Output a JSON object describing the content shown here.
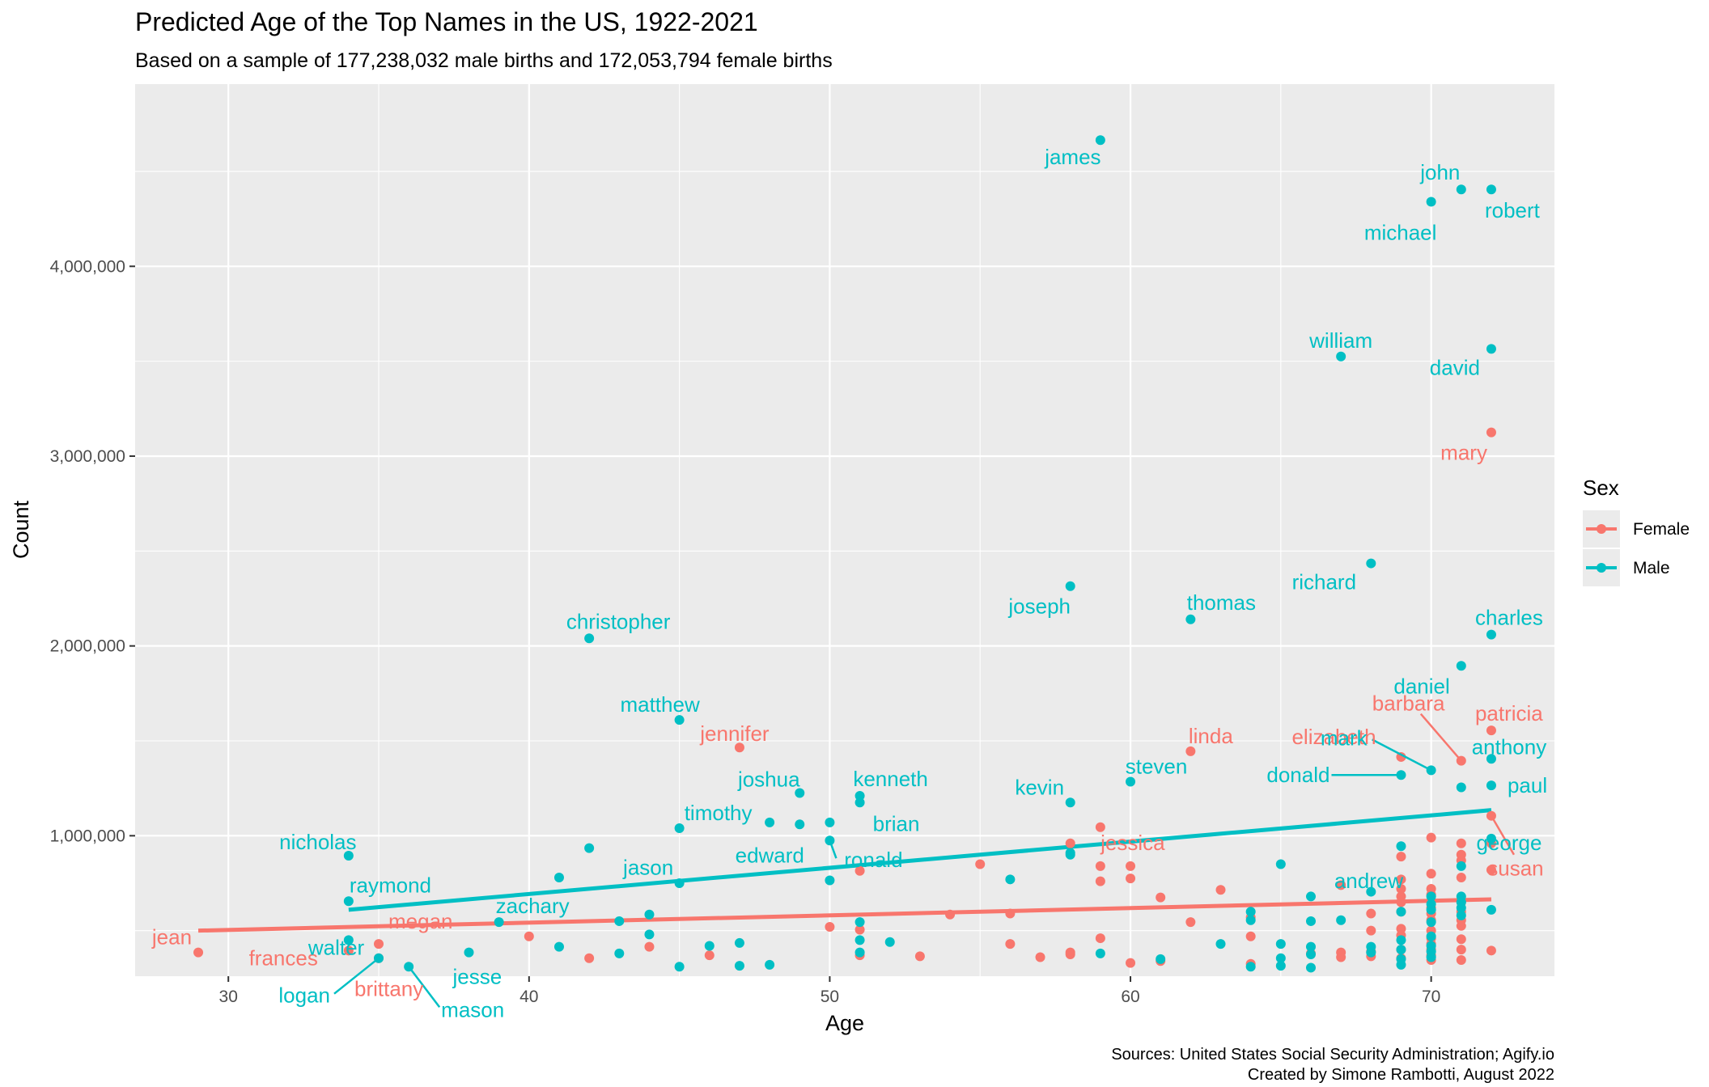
{
  "chart_data": {
    "type": "scatter",
    "title": "Predicted Age of the Top Names in the US, 1922-2021",
    "subtitle": "Based on a sample of 177,238,032 male births and 172,053,794 female births",
    "xlabel": "Age",
    "ylabel": "Count",
    "xlim": [
      26.9,
      74.1
    ],
    "ylim": [
      260000,
      4960000
    ],
    "x_ticks": [
      30,
      40,
      50,
      60,
      70
    ],
    "x_tick_labels": [
      "30",
      "40",
      "50",
      "60",
      "70"
    ],
    "y_ticks": [
      1000000,
      2000000,
      3000000,
      4000000
    ],
    "y_tick_labels": [
      "1,000,000",
      "2,000,000",
      "3,000,000",
      "4,000,000"
    ],
    "grid": true,
    "legend": {
      "title": "Sex",
      "position": "right"
    },
    "colors": {
      "Female": "#F8766D",
      "Male": "#00BFC4"
    },
    "caption": [
      "Sources: United States Social Security Administration; Agify.io",
      "Created by Simone Rambotti, August 2022"
    ],
    "series": [
      {
        "name": "Female",
        "trend": [
          [
            29,
            500000
          ],
          [
            72,
            665000
          ]
        ],
        "labels": [
          {
            "text": "mary",
            "x": 72,
            "y": 3125000
          },
          {
            "text": "patricia",
            "x": 72,
            "y": 1555000
          },
          {
            "text": "barbara",
            "x": 71,
            "y": 1395000
          },
          {
            "text": "elizabeth",
            "x": 69,
            "y": 1415000
          },
          {
            "text": "linda",
            "x": 62,
            "y": 1445000
          },
          {
            "text": "jennifer",
            "x": 47,
            "y": 1465000
          },
          {
            "text": "jessica",
            "x": 59,
            "y": 1045000
          },
          {
            "text": "susan",
            "x": 72,
            "y": 1105000
          },
          {
            "text": "jean",
            "x": 29,
            "y": 385000
          },
          {
            "text": "frances",
            "x": 34,
            "y": 395000
          },
          {
            "text": "megan",
            "x": 35,
            "y": 430000
          },
          {
            "text": "brittany",
            "x": 35,
            "y": 355000
          }
        ],
        "points": [
          [
            29,
            385000
          ],
          [
            34,
            395000
          ],
          [
            35,
            430000
          ],
          [
            35,
            355000
          ],
          [
            40,
            470000
          ],
          [
            42,
            355000
          ],
          [
            44,
            415000
          ],
          [
            46,
            370000
          ],
          [
            47,
            1465000
          ],
          [
            50,
            520000
          ],
          [
            51,
            505000
          ],
          [
            51,
            370000
          ],
          [
            51,
            815000
          ],
          [
            53,
            365000
          ],
          [
            54,
            585000
          ],
          [
            55,
            850000
          ],
          [
            56,
            430000
          ],
          [
            56,
            590000
          ],
          [
            57,
            360000
          ],
          [
            58,
            375000
          ],
          [
            58,
            385000
          ],
          [
            58,
            960000
          ],
          [
            59,
            1045000
          ],
          [
            59,
            840000
          ],
          [
            59,
            760000
          ],
          [
            59,
            460000
          ],
          [
            60,
            840000
          ],
          [
            60,
            775000
          ],
          [
            60,
            330000
          ],
          [
            61,
            675000
          ],
          [
            61,
            340000
          ],
          [
            62,
            1445000
          ],
          [
            62,
            545000
          ],
          [
            63,
            715000
          ],
          [
            64,
            470000
          ],
          [
            64,
            570000
          ],
          [
            64,
            325000
          ],
          [
            66,
            380000
          ],
          [
            67,
            740000
          ],
          [
            67,
            385000
          ],
          [
            67,
            360000
          ],
          [
            68,
            590000
          ],
          [
            68,
            500000
          ],
          [
            68,
            390000
          ],
          [
            68,
            365000
          ],
          [
            69,
            1415000
          ],
          [
            69,
            890000
          ],
          [
            69,
            770000
          ],
          [
            69,
            720000
          ],
          [
            69,
            680000
          ],
          [
            69,
            650000
          ],
          [
            69,
            600000
          ],
          [
            69,
            510000
          ],
          [
            69,
            475000
          ],
          [
            69,
            400000
          ],
          [
            69,
            355000
          ],
          [
            70,
            990000
          ],
          [
            70,
            800000
          ],
          [
            70,
            720000
          ],
          [
            70,
            690000
          ],
          [
            70,
            655000
          ],
          [
            70,
            620000
          ],
          [
            70,
            590000
          ],
          [
            70,
            555000
          ],
          [
            70,
            500000
          ],
          [
            70,
            460000
          ],
          [
            70,
            430000
          ],
          [
            70,
            400000
          ],
          [
            70,
            370000
          ],
          [
            70,
            345000
          ],
          [
            71,
            1395000
          ],
          [
            71,
            960000
          ],
          [
            71,
            900000
          ],
          [
            71,
            870000
          ],
          [
            71,
            780000
          ],
          [
            71,
            650000
          ],
          [
            71,
            600000
          ],
          [
            71,
            555000
          ],
          [
            71,
            525000
          ],
          [
            71,
            455000
          ],
          [
            71,
            400000
          ],
          [
            71,
            345000
          ],
          [
            72,
            3125000
          ],
          [
            72,
            1555000
          ],
          [
            72,
            1105000
          ],
          [
            72,
            960000
          ],
          [
            72,
            820000
          ],
          [
            72,
            395000
          ]
        ]
      },
      {
        "name": "Male",
        "trend": [
          [
            34,
            610000
          ],
          [
            72,
            1135000
          ]
        ],
        "labels": [
          {
            "text": "james",
            "x": 59,
            "y": 4665000
          },
          {
            "text": "john",
            "x": 71,
            "y": 4405000
          },
          {
            "text": "michael",
            "x": 70,
            "y": 4340000
          },
          {
            "text": "robert",
            "x": 72,
            "y": 4405000
          },
          {
            "text": "william",
            "x": 67,
            "y": 3525000
          },
          {
            "text": "david",
            "x": 72,
            "y": 3565000
          },
          {
            "text": "richard",
            "x": 68,
            "y": 2435000
          },
          {
            "text": "joseph",
            "x": 58,
            "y": 2315000
          },
          {
            "text": "thomas",
            "x": 62,
            "y": 2140000
          },
          {
            "text": "charles",
            "x": 72,
            "y": 2060000
          },
          {
            "text": "christopher",
            "x": 42,
            "y": 2040000
          },
          {
            "text": "daniel",
            "x": 71,
            "y": 1895000
          },
          {
            "text": "matthew",
            "x": 45,
            "y": 1610000
          },
          {
            "text": "mark",
            "x": 70,
            "y": 1345000
          },
          {
            "text": "anthony",
            "x": 72,
            "y": 1405000
          },
          {
            "text": "donald",
            "x": 69,
            "y": 1320000
          },
          {
            "text": "paul",
            "x": 72,
            "y": 1265000
          },
          {
            "text": "steven",
            "x": 60,
            "y": 1285000
          },
          {
            "text": "kevin",
            "x": 58,
            "y": 1175000
          },
          {
            "text": "joshua",
            "x": 49,
            "y": 1225000
          },
          {
            "text": "kenneth",
            "x": 51,
            "y": 1210000
          },
          {
            "text": "brian",
            "x": 51,
            "y": 1175000
          },
          {
            "text": "timothy",
            "x": 45,
            "y": 1040000
          },
          {
            "text": "edward",
            "x": 49,
            "y": 1060000
          },
          {
            "text": "ronald",
            "x": 50,
            "y": 975000
          },
          {
            "text": "andrew",
            "x": 69,
            "y": 945000
          },
          {
            "text": "george",
            "x": 72,
            "y": 985000
          },
          {
            "text": "jason",
            "x": 42,
            "y": 935000
          },
          {
            "text": "nicholas",
            "x": 34,
            "y": 895000
          },
          {
            "text": "raymond",
            "x": 34,
            "y": 655000
          },
          {
            "text": "zachary",
            "x": 39,
            "y": 545000
          },
          {
            "text": "walter",
            "x": 34,
            "y": 450000
          },
          {
            "text": "jesse",
            "x": 38,
            "y": 385000
          },
          {
            "text": "logan",
            "x": 35,
            "y": 355000
          },
          {
            "text": "mason",
            "x": 36,
            "y": 310000
          }
        ],
        "points": [
          [
            34,
            895000
          ],
          [
            34,
            655000
          ],
          [
            34,
            450000
          ],
          [
            35,
            355000
          ],
          [
            36,
            310000
          ],
          [
            38,
            385000
          ],
          [
            39,
            545000
          ],
          [
            41,
            780000
          ],
          [
            41,
            415000
          ],
          [
            42,
            2040000
          ],
          [
            42,
            935000
          ],
          [
            43,
            550000
          ],
          [
            43,
            380000
          ],
          [
            44,
            585000
          ],
          [
            44,
            480000
          ],
          [
            45,
            1610000
          ],
          [
            45,
            1040000
          ],
          [
            45,
            750000
          ],
          [
            45,
            310000
          ],
          [
            46,
            420000
          ],
          [
            47,
            435000
          ],
          [
            47,
            315000
          ],
          [
            48,
            1070000
          ],
          [
            48,
            320000
          ],
          [
            49,
            1225000
          ],
          [
            49,
            1060000
          ],
          [
            50,
            1070000
          ],
          [
            50,
            975000
          ],
          [
            50,
            765000
          ],
          [
            51,
            1210000
          ],
          [
            51,
            1175000
          ],
          [
            51,
            545000
          ],
          [
            51,
            450000
          ],
          [
            51,
            385000
          ],
          [
            52,
            440000
          ],
          [
            56,
            770000
          ],
          [
            58,
            2315000
          ],
          [
            58,
            1175000
          ],
          [
            58,
            900000
          ],
          [
            58,
            910000
          ],
          [
            59,
            4665000
          ],
          [
            59,
            380000
          ],
          [
            60,
            1285000
          ],
          [
            61,
            350000
          ],
          [
            62,
            2140000
          ],
          [
            63,
            430000
          ],
          [
            64,
            600000
          ],
          [
            64,
            555000
          ],
          [
            64,
            310000
          ],
          [
            65,
            850000
          ],
          [
            65,
            430000
          ],
          [
            65,
            355000
          ],
          [
            65,
            315000
          ],
          [
            66,
            680000
          ],
          [
            66,
            550000
          ],
          [
            66,
            415000
          ],
          [
            66,
            375000
          ],
          [
            66,
            305000
          ],
          [
            67,
            3525000
          ],
          [
            67,
            555000
          ],
          [
            68,
            2435000
          ],
          [
            68,
            705000
          ],
          [
            68,
            415000
          ],
          [
            68,
            385000
          ],
          [
            69,
            1320000
          ],
          [
            69,
            945000
          ],
          [
            69,
            600000
          ],
          [
            69,
            450000
          ],
          [
            69,
            400000
          ],
          [
            69,
            350000
          ],
          [
            69,
            320000
          ],
          [
            70,
            4340000
          ],
          [
            70,
            1345000
          ],
          [
            70,
            680000
          ],
          [
            70,
            640000
          ],
          [
            70,
            610000
          ],
          [
            70,
            545000
          ],
          [
            70,
            470000
          ],
          [
            70,
            420000
          ],
          [
            70,
            390000
          ],
          [
            70,
            360000
          ],
          [
            71,
            4405000
          ],
          [
            71,
            1895000
          ],
          [
            71,
            1255000
          ],
          [
            71,
            840000
          ],
          [
            71,
            680000
          ],
          [
            71,
            650000
          ],
          [
            71,
            620000
          ],
          [
            71,
            580000
          ],
          [
            72,
            4405000
          ],
          [
            72,
            3565000
          ],
          [
            72,
            2060000
          ],
          [
            72,
            1405000
          ],
          [
            72,
            1265000
          ],
          [
            72,
            985000
          ],
          [
            72,
            610000
          ]
        ]
      }
    ]
  }
}
